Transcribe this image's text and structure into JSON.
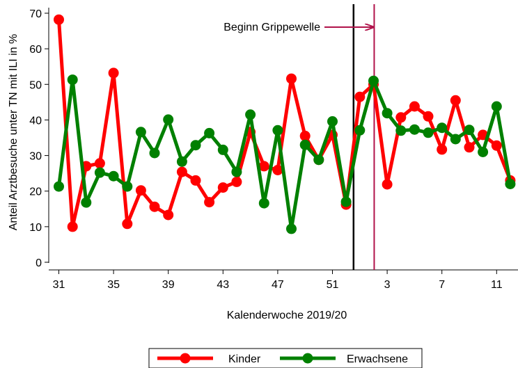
{
  "chart_data": {
    "type": "line",
    "xlabel": "Kalenderwoche 2019/20",
    "ylabel": "Anteil Arztbesuche unter TN mit ILI in %",
    "ylim": [
      0,
      70
    ],
    "yticks": [
      0,
      10,
      20,
      30,
      40,
      50,
      60,
      70
    ],
    "x_tick_labels": [
      "31",
      "35",
      "39",
      "43",
      "47",
      "51",
      "3",
      "7",
      "11"
    ],
    "x_weeks": [
      "31",
      "32",
      "33",
      "34",
      "35",
      "36",
      "37",
      "38",
      "39",
      "40",
      "41",
      "42",
      "43",
      "44",
      "45",
      "46",
      "47",
      "48",
      "49",
      "50",
      "51",
      "52",
      "1",
      "2",
      "3",
      "4",
      "5",
      "6",
      "7",
      "8",
      "9",
      "10",
      "11",
      "12"
    ],
    "series": [
      {
        "name": "Kinder",
        "color": "#ff0000",
        "values": [
          68.2,
          10.0,
          27.0,
          27.8,
          53.2,
          10.8,
          20.2,
          15.6,
          13.3,
          25.4,
          23.0,
          16.9,
          21.0,
          22.6,
          36.6,
          27.0,
          25.9,
          51.6,
          35.5,
          28.8,
          35.8,
          16.2,
          46.5,
          50.0,
          21.9,
          40.7,
          43.8,
          41.0,
          31.7,
          45.5,
          32.3,
          35.8,
          32.8,
          23.0
        ]
      },
      {
        "name": "Erwachsene",
        "color": "#008000",
        "values": [
          21.3,
          51.3,
          16.8,
          25.2,
          24.2,
          21.3,
          36.6,
          30.7,
          40.1,
          28.3,
          32.9,
          36.3,
          31.6,
          25.4,
          41.5,
          16.6,
          37.1,
          9.4,
          33.0,
          28.8,
          39.6,
          17.0,
          37.1,
          51.0,
          41.9,
          37.0,
          37.3,
          36.4,
          37.8,
          34.6,
          37.2,
          31.0,
          43.8,
          22.0
        ]
      }
    ],
    "annotations": {
      "season_start_week": "1",
      "flu_wave_start_week": "2",
      "flu_wave_label": "Beginn Grippewelle"
    },
    "legend": "bottom-center",
    "grid": false
  }
}
